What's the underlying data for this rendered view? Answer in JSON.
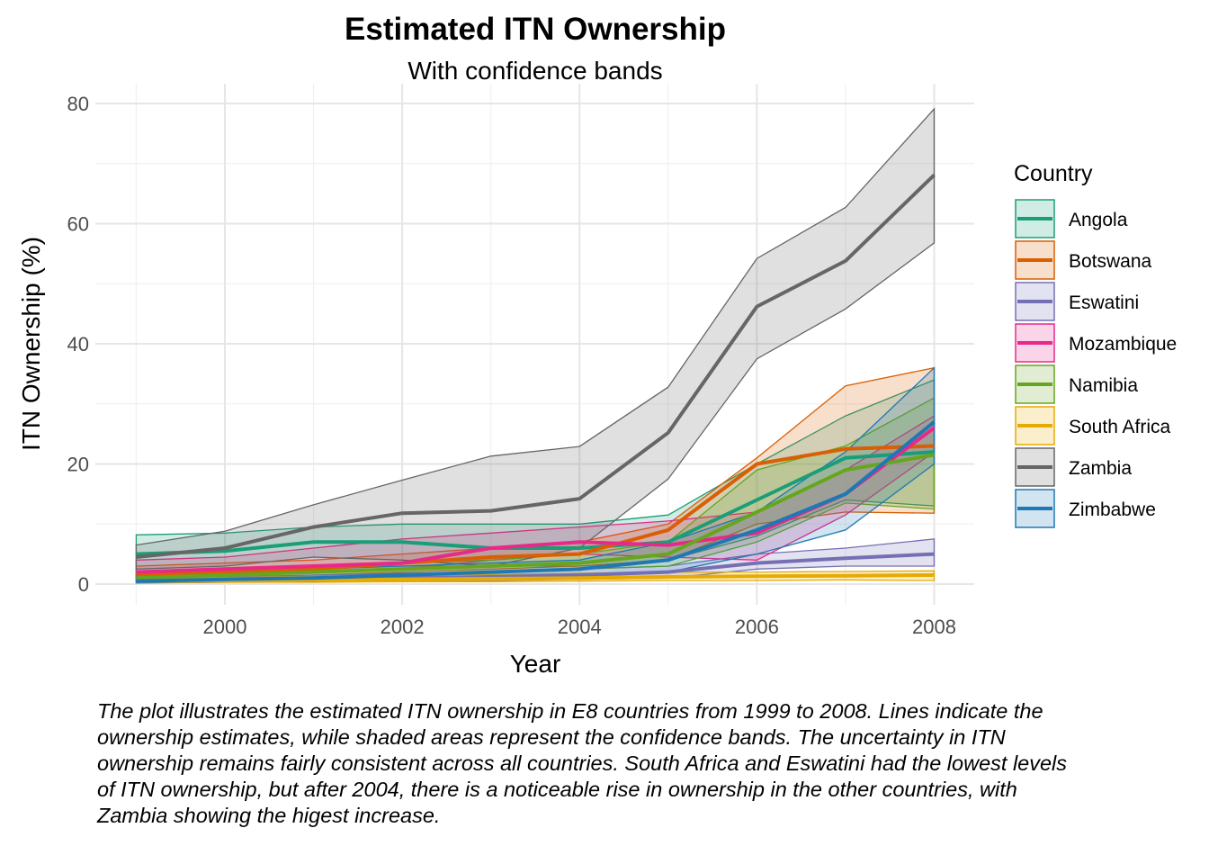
{
  "chart_data": {
    "type": "line",
    "title": "Estimated ITN Ownership",
    "subtitle": "With confidence bands",
    "xlabel": "Year",
    "ylabel": "ITN Ownership (%)",
    "xlim": [
      1999,
      2008
    ],
    "ylim": [
      0,
      80
    ],
    "x_ticks": [
      2000,
      2002,
      2004,
      2006,
      2008
    ],
    "y_ticks": [
      0,
      20,
      40,
      60,
      80
    ],
    "grid": true,
    "legend": {
      "title": "Country",
      "position": "right"
    },
    "x": [
      1999,
      2000,
      2001,
      2002,
      2003,
      2004,
      2005,
      2006,
      2007,
      2008
    ],
    "series": [
      {
        "name": "Angola",
        "color": "#1b9e77",
        "values": [
          5,
          5.5,
          7,
          7,
          6,
          6,
          7,
          14,
          21,
          22
        ],
        "lower": [
          1.5,
          2,
          3,
          3,
          3,
          3,
          4,
          8,
          14,
          13
        ],
        "upper": [
          8.2,
          8.5,
          9.5,
          10,
          10,
          10,
          11.5,
          20,
          28,
          34
        ]
      },
      {
        "name": "Botswana",
        "color": "#d95f02",
        "values": [
          1.5,
          2,
          2.5,
          3.5,
          4.5,
          5,
          9,
          20,
          22.5,
          23
        ],
        "lower": [
          0.5,
          1,
          1.5,
          2,
          2.5,
          3,
          4,
          10,
          12,
          11.8
        ],
        "upper": [
          3,
          3.5,
          4,
          5,
          6,
          7,
          10,
          21,
          33,
          36
        ]
      },
      {
        "name": "Eswatini",
        "color": "#7570b3",
        "values": [
          0.5,
          0.6,
          0.8,
          1,
          1.2,
          1.5,
          2,
          3.5,
          4.3,
          5
        ],
        "lower": [
          0.2,
          0.3,
          0.4,
          0.5,
          0.6,
          0.8,
          1,
          2.5,
          3,
          3
        ],
        "upper": [
          1,
          1.2,
          1.5,
          1.8,
          2,
          2.5,
          3,
          5,
          6,
          7.5
        ]
      },
      {
        "name": "Mozambique",
        "color": "#e7298a",
        "values": [
          2,
          2.5,
          3,
          3.5,
          6,
          7,
          6.5,
          8.5,
          15,
          26
        ],
        "lower": [
          1,
          1.5,
          2,
          2.5,
          4,
          5,
          4.5,
          4,
          11.5,
          22
        ],
        "upper": [
          4,
          4.5,
          6,
          7.5,
          8.5,
          9.5,
          10.5,
          12,
          19,
          28
        ]
      },
      {
        "name": "Namibia",
        "color": "#66a61e",
        "values": [
          1,
          1.5,
          2,
          2.5,
          3,
          3.5,
          5,
          12,
          19,
          21.5
        ],
        "lower": [
          0.5,
          0.8,
          1,
          1.5,
          2,
          2.5,
          3,
          7,
          13.5,
          12.5
        ],
        "upper": [
          2,
          2.5,
          3,
          3.5,
          4,
          5,
          7,
          19,
          23,
          31
        ]
      },
      {
        "name": "South Africa",
        "color": "#e6ab02",
        "values": [
          0.5,
          0.6,
          0.7,
          0.8,
          0.9,
          1,
          1.2,
          1.3,
          1.4,
          1.5
        ],
        "lower": [
          0.2,
          0.3,
          0.3,
          0.4,
          0.4,
          0.5,
          0.6,
          0.6,
          0.7,
          0.6
        ],
        "upper": [
          1,
          1.1,
          1.3,
          1.5,
          1.6,
          1.8,
          2,
          2,
          2.1,
          2.2
        ]
      },
      {
        "name": "Zambia",
        "color": "#666666",
        "values": [
          4.5,
          6,
          9.5,
          11.8,
          12.2,
          14.2,
          25.2,
          46.2,
          53.8,
          68.1
        ],
        "lower": [
          2.5,
          3,
          4.5,
          4,
          3,
          6,
          17.5,
          37.5,
          45.8,
          56.8
        ],
        "upper": [
          6.5,
          8.8,
          13.2,
          17.3,
          21.3,
          22.9,
          32.8,
          54.2,
          62.7,
          79.1
        ]
      },
      {
        "name": "Zimbabwe",
        "color": "#1f78b4",
        "values": [
          0.5,
          0.8,
          1,
          1.5,
          2,
          2.5,
          4,
          9,
          15,
          27
        ],
        "lower": [
          0.2,
          0.4,
          0.5,
          0.8,
          1,
          1.2,
          2,
          5,
          9,
          20
        ],
        "upper": [
          1.5,
          2,
          2.5,
          3,
          3.5,
          4,
          7,
          12,
          22,
          36
        ]
      }
    ]
  },
  "caption": "The plot illustrates the estimated ITN ownership in E8 countries from 1999 to 2008. Lines indicate the ownership estimates, while shaded areas represent the confidence bands. The uncertainty in ITN ownership remains fairly consistent across all countries. South Africa and Eswatini had the lowest levels of ITN ownership, but after 2004, there is a noticeable rise in ownership in the other countries, with Zambia showing the higest increase."
}
